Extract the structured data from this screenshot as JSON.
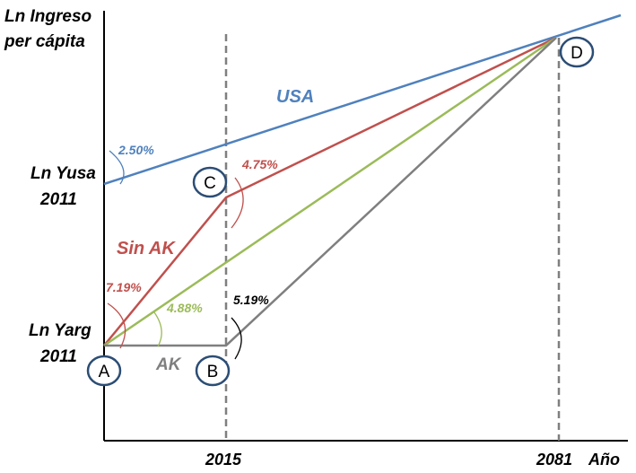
{
  "y_axis": {
    "title_line1": "Ln Ingreso",
    "title_line2": "per cápita",
    "yusa_line1": "Ln Yusa",
    "yusa_line2": "2011",
    "yarg_line1": "Ln Yarg",
    "yarg_line2": "2011"
  },
  "x_axis": {
    "tick_2015": "2015",
    "tick_2081": "2081",
    "label": "Año"
  },
  "lines": {
    "usa": {
      "label": "USA",
      "color": "#4f81bd",
      "rate": "2.50%"
    },
    "sin_ak": {
      "label": "Sin AK",
      "color": "#c0504d",
      "rate1": "7.19%",
      "rate2": "4.75%"
    },
    "green": {
      "color": "#9bbb59",
      "rate": "4.88%"
    },
    "ak": {
      "label": "AK",
      "color": "#7f7f7f",
      "rate": "5.19%"
    }
  },
  "points": {
    "a": "A",
    "b": "B",
    "c": "C",
    "d": "D"
  },
  "colors": {
    "node_stroke": "#2c4d75",
    "axis": "#000000",
    "dashed": "#7f7f7f"
  }
}
